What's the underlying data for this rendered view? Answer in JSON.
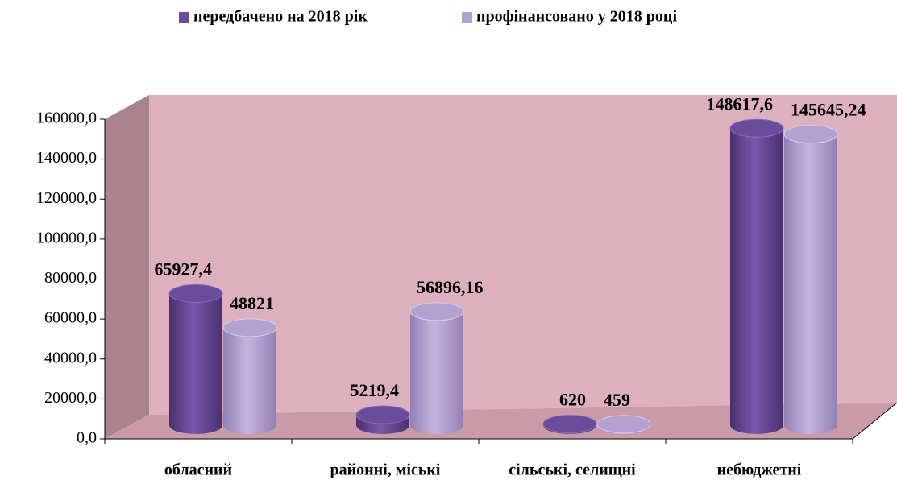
{
  "chart_data": {
    "type": "bar",
    "categories": [
      "обласний",
      "районні, міські",
      "сільські, селищні",
      "небюджетні"
    ],
    "series": [
      {
        "name": "передбачено на 2018 рік",
        "color": "#6b4c9a",
        "values": [
          65927.4,
          5219.4,
          620,
          148617.6
        ],
        "value_labels": [
          "65927,4",
          "5219,4",
          "620",
          "148617,6"
        ]
      },
      {
        "name": "профінансовано у 2018 році",
        "color": "#b3a2cf",
        "values": [
          48821,
          56896.16,
          459,
          145645.24
        ],
        "value_labels": [
          "48821",
          "56896,16",
          "459",
          "145645,24"
        ]
      }
    ],
    "ylim": [
      0,
      160000
    ],
    "yticks": [
      {
        "value": 0,
        "label": "0,0"
      },
      {
        "value": 20000,
        "label": "20000,0"
      },
      {
        "value": 40000,
        "label": "40000,0"
      },
      {
        "value": 60000,
        "label": "60000,0"
      },
      {
        "value": 80000,
        "label": "80000,0"
      },
      {
        "value": 100000,
        "label": "100000,0"
      },
      {
        "value": 120000,
        "label": "120000,0"
      },
      {
        "value": 140000,
        "label": "140000,0"
      },
      {
        "value": 160000,
        "label": "160000,0"
      }
    ],
    "legend": "top"
  }
}
